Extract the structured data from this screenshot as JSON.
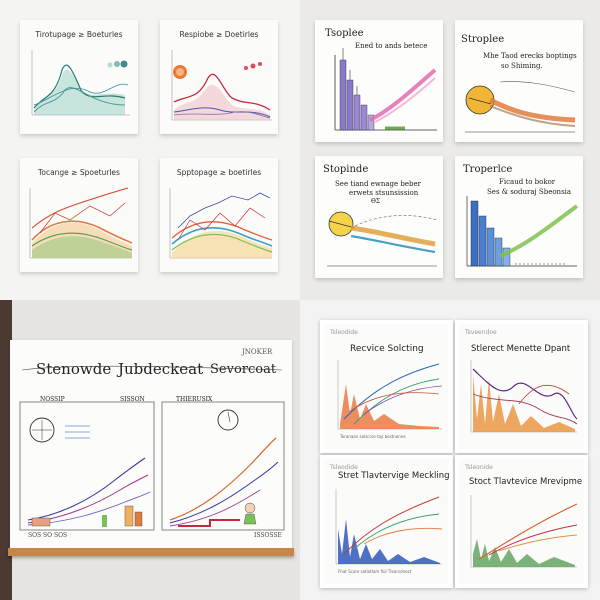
{
  "panels": {
    "top_left": {
      "charts": [
        {
          "title": "Tirotupage ≥ Boeturles"
        },
        {
          "title": "Respiobe ≥ Doetirles"
        },
        {
          "title": "Tocange ≥ Spoeturles"
        },
        {
          "title": "Spptopage ≥ boetirles"
        }
      ]
    },
    "top_right": {
      "cards": [
        {
          "title": "Tsoplee",
          "subtitle": "Ened to ands betece"
        },
        {
          "title": "Stroplee",
          "subtitle": "Mhe Taod erecks boptings",
          "subtitle2": "so Shiming."
        },
        {
          "title": "Stopinde",
          "subtitle": "See tiand ewnage beber",
          "subtitle2": "erwets stsunsission",
          "subtitle3": "ΘΣ"
        },
        {
          "title": "Troperlce",
          "subtitle": "Ficaud to bokor",
          "subtitle2": "Ses & soduraj Sbeonsia"
        }
      ]
    },
    "bottom_left": {
      "title_left": "Stenowde",
      "title_mid": "Jubdeckeat",
      "title_right": "Sevorcoat",
      "note_top": "JNOKER",
      "left_chart_label": "NOSSIP",
      "left_chart_label2": "SISSON",
      "right_chart_label": "THIERUSIX",
      "footer_left": "SOS SO SOS",
      "footer_right": "ISSOSSE"
    },
    "bottom_right": {
      "cards": [
        {
          "tag": "Tsleodide",
          "title": "Recvice Solcting",
          "footer": "Toranaan solscrse tay bestnonne"
        },
        {
          "tag": "Tsveendoe",
          "title": "Stlerect Menette Dpant",
          "footer": ""
        },
        {
          "tag": "Tsleodide",
          "title": "Stret Tlavtervige Meckling",
          "footer": "Fhat Scare sotiotlam fiol Tlearsdnest"
        },
        {
          "tag": "Tsleonide",
          "title": "Stoct Tlavtevice Mrevipme",
          "footer": ""
        }
      ]
    }
  }
}
